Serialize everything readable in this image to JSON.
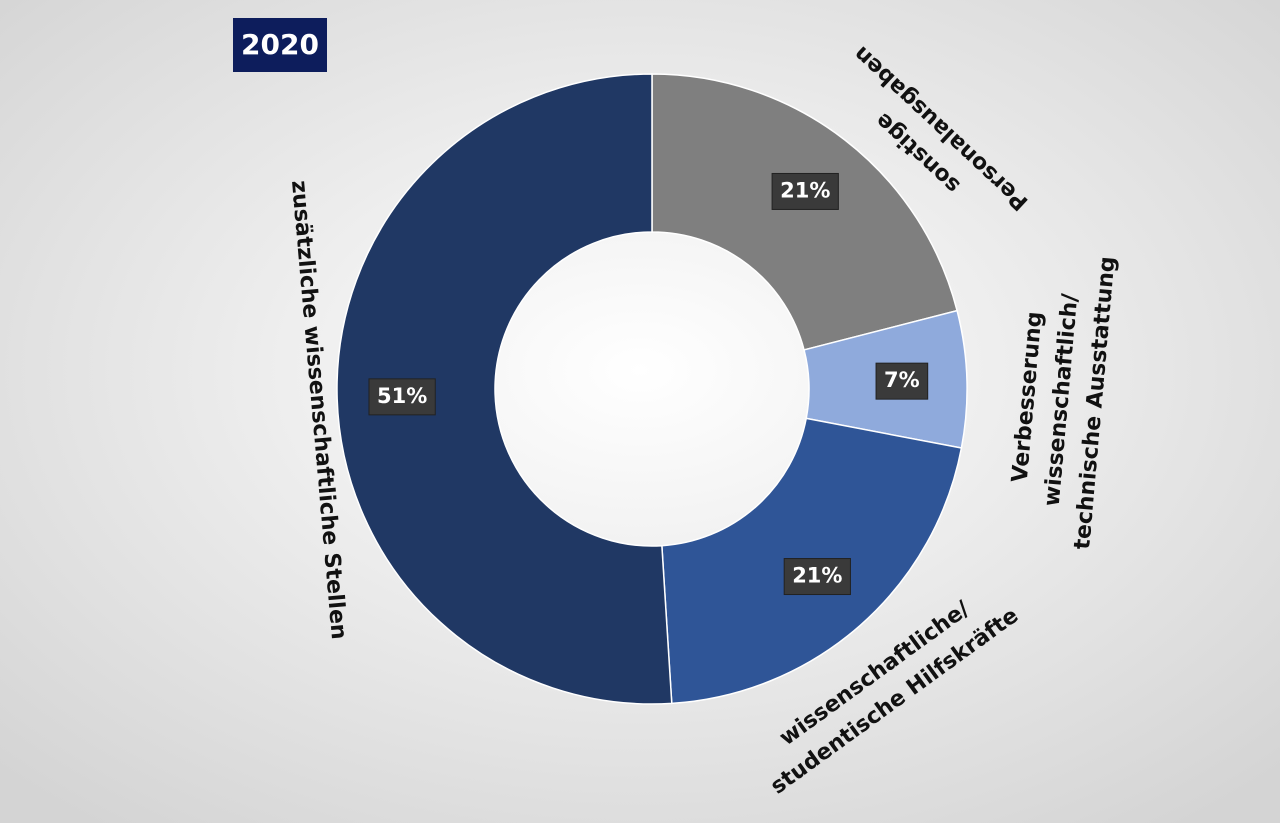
{
  "chart_data": {
    "type": "donut",
    "title": "2020",
    "categories": [
      [
        "sonstige",
        "Personalausgaben"
      ],
      [
        "Verbesserung",
        "wissenschaftlich/",
        "technische Ausstattung"
      ],
      [
        "wissenschaftliche/",
        "studentische Hilfskräfte"
      ],
      [
        "zusätzliche wissenschaftliche Stellen"
      ]
    ],
    "values": [
      21,
      7,
      21,
      51
    ],
    "value_labels": [
      "21%",
      "7%",
      "21%",
      "51%"
    ],
    "colors": [
      "#7f7f7f",
      "#8faadc",
      "#2f5597",
      "#203864"
    ]
  }
}
